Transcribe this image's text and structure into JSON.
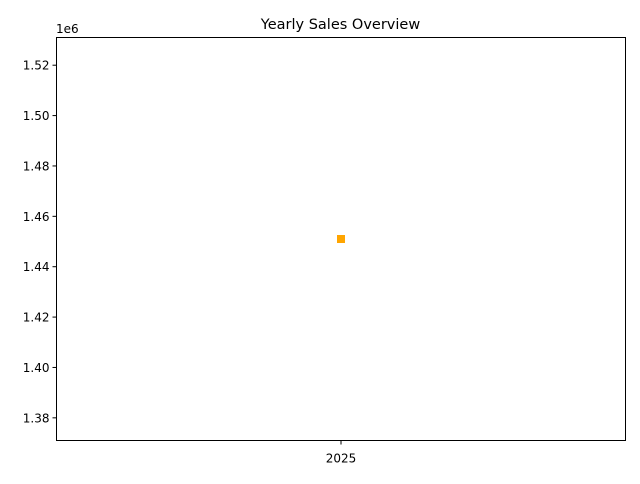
{
  "chart_data": {
    "type": "scatter",
    "title": "Yearly Sales Overview",
    "xlabel": "",
    "ylabel": "",
    "x_categories": [
      "2025"
    ],
    "points": [
      {
        "x": "2025",
        "y": 1451000
      }
    ],
    "marker": "square",
    "point_color": "#ffa500",
    "y_offset_label": "1e6",
    "ylim": [
      1371000,
      1531000
    ],
    "y_ticks": [
      1.38,
      1.4,
      1.42,
      1.44,
      1.46,
      1.48,
      1.5,
      1.52
    ],
    "y_tick_labels": [
      "1.38",
      "1.40",
      "1.42",
      "1.44",
      "1.46",
      "1.48",
      "1.50",
      "1.52"
    ],
    "y_scale_factor": 1000000,
    "grid": false,
    "legend": "none"
  }
}
